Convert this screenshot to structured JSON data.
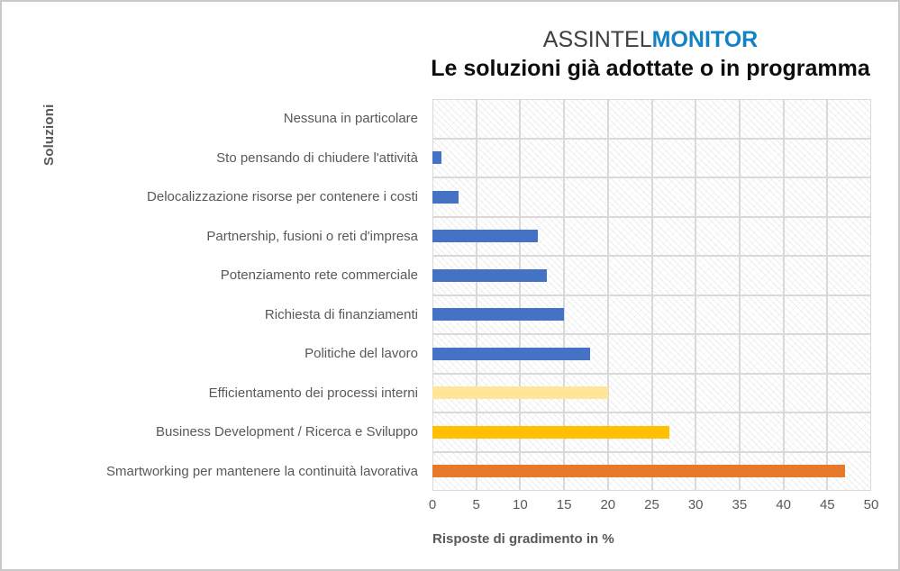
{
  "header": {
    "brand_part1": "ASSINTEL",
    "brand_part2": "MONITOR",
    "subtitle": "Le soluzioni già adottate o in programma"
  },
  "colors": {
    "brand_part1_text": "#3F3F3F",
    "brand_part2_text": "#1382C5",
    "subtitle_text": "#0D0D0D",
    "axis_text": "#595959",
    "gridline": "#D9D9D9",
    "bar_blue": "#4472C4",
    "bar_light_yellow": "#FFE699",
    "bar_gold": "#FFC000",
    "bar_orange": "#E8782A",
    "page_border": "#C9C9C9"
  },
  "chart_data": {
    "type": "bar",
    "orientation": "horizontal",
    "title": "ASSINTEL MONITOR — Le soluzioni già adottate o in programma",
    "ylabel": "Soluzioni",
    "xlabel": "Risposte di gradimento in %",
    "xlim": [
      0,
      50
    ],
    "xticks": [
      0,
      5,
      10,
      15,
      20,
      25,
      30,
      35,
      40,
      45,
      50
    ],
    "grid": true,
    "plot_background": "diagonal-hatch",
    "legend": "none",
    "categories": [
      "Nessuna in particolare",
      "Sto pensando di chiudere l'attività",
      "Delocalizzazione risorse per contenere i costi",
      "Partnership, fusioni o reti d'impresa",
      "Potenziamento rete commerciale",
      "Richiesta di finanziamenti",
      "Politiche del lavoro",
      "Efficientamento dei processi interni",
      "Business Development / Ricerca e Sviluppo",
      "Smartworking per mantenere la continuità lavorativa"
    ],
    "values": [
      0,
      1,
      3,
      12,
      13,
      15,
      18,
      20,
      27,
      47
    ],
    "bar_colors": [
      "#4472C4",
      "#4472C4",
      "#4472C4",
      "#4472C4",
      "#4472C4",
      "#4472C4",
      "#4472C4",
      "#FFE699",
      "#FFC000",
      "#E8782A"
    ]
  }
}
